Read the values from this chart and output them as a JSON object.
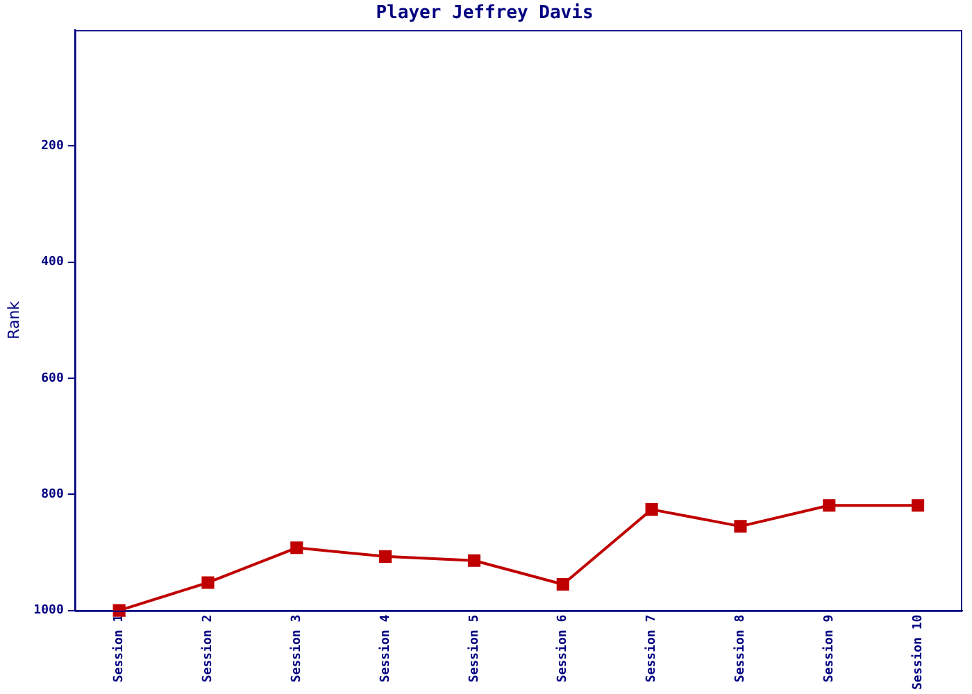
{
  "chart_data": {
    "type": "line",
    "title": "Player Jeffrey Davis",
    "ylabel": "Rank",
    "categories": [
      "Session 1",
      "Session 2",
      "Session 3",
      "Session 4",
      "Session 5",
      "Session 6",
      "Session 7",
      "Session 8",
      "Session 9",
      "Session 10"
    ],
    "series": [
      {
        "color": "#c00000",
        "values": [
          1000,
          952,
          892,
          907,
          914,
          955,
          826,
          855,
          819,
          819
        ]
      }
    ],
    "ylim": [
      1000,
      0
    ],
    "yticks": [
      200,
      400,
      600,
      800,
      1000
    ],
    "grid": false,
    "legend": false,
    "marker": "square",
    "line_style": "solid"
  }
}
